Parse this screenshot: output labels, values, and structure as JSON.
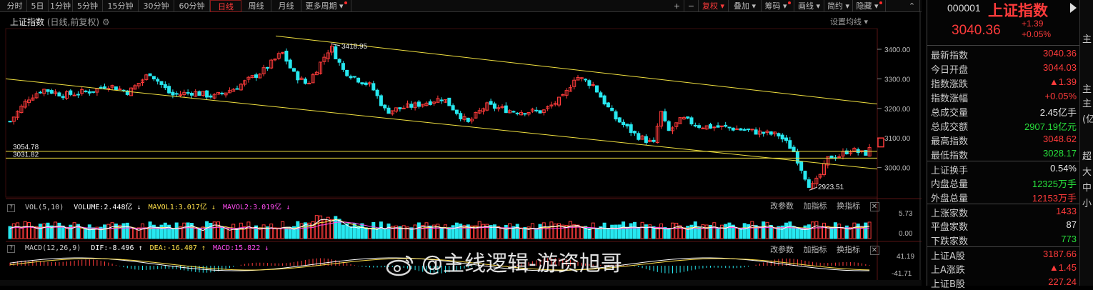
{
  "toolbar": {
    "periods": [
      "分时",
      "5日",
      "1分钟",
      "5分钟",
      "15分钟",
      "30分钟",
      "60分钟",
      "日线",
      "周线",
      "月线",
      "更多周期"
    ],
    "active_period": "日线",
    "right_tools": [
      "+",
      "−",
      "复权",
      "叠加",
      "筹码",
      "画线",
      "简约",
      "隐藏"
    ]
  },
  "chart": {
    "title": "上证指数",
    "subtitle": "(日线,前复权)",
    "settings_label": "设置均线",
    "y_ticks": [
      3400,
      3300,
      3200,
      3100,
      3000
    ],
    "y_tick_labels": [
      "3400.00",
      "3300.00",
      "3200.00",
      "3100.00",
      "3000.00"
    ],
    "ylim": [
      2900,
      3470
    ],
    "annotations": {
      "high_label": "3418.95",
      "low_label": "2923.51",
      "level1_label": "3054.78",
      "level2_label": "3031.82"
    }
  },
  "volume_panel": {
    "title": "VOL(5,10)",
    "volume": "VOLUME:2.448亿",
    "mavol1": "MAVOL1:3.017亿",
    "mavol2": "MAVOL2:3.019亿",
    "axis_top": "5.73",
    "axis_bottom": "0.00",
    "tools": [
      "改参数",
      "加指标",
      "换指标"
    ]
  },
  "macd_panel": {
    "title": "MACD(12,26,9)",
    "dif": "DIF:-8.496",
    "dea": "DEA:-16.407",
    "macd": "MACD:15.822",
    "axis_top": "41.19",
    "axis_bottom": "-41.71",
    "tools": [
      "改参数",
      "加指标",
      "换指标"
    ]
  },
  "quote": {
    "code": "000001",
    "name": "上证指数",
    "price": "3040.36",
    "change": "+1.39",
    "change_pct": "+0.05%",
    "rows": [
      {
        "label": "最新指数",
        "value": "3040.36",
        "color": "red"
      },
      {
        "label": "今日开盘",
        "value": "3044.03",
        "color": "red"
      },
      {
        "label": "指数涨跌",
        "value": "▲1.39",
        "color": "red"
      },
      {
        "label": "指数涨幅",
        "value": "+0.05%",
        "color": "red"
      },
      {
        "label": "总成交量",
        "value": "2.45亿手",
        "color": "white"
      },
      {
        "label": "总成交额",
        "value": "2907.19亿元",
        "color": "green"
      },
      {
        "label": "最高指数",
        "value": "3048.62",
        "color": "red"
      },
      {
        "label": "最低指数",
        "value": "3028.17",
        "color": "green"
      },
      {
        "label": "上证换手",
        "value": "0.54%",
        "color": "white",
        "sep": true
      },
      {
        "label": "内盘总量",
        "value": "12325万手",
        "color": "green"
      },
      {
        "label": "外盘总量",
        "value": "12153万手",
        "color": "red"
      },
      {
        "label": "上涨家数",
        "value": "1433",
        "color": "red",
        "sep": true
      },
      {
        "label": "平盘家数",
        "value": "87",
        "color": "white"
      },
      {
        "label": "下跌家数",
        "value": "773",
        "color": "green"
      },
      {
        "label": "上证A股",
        "value": "3187.66",
        "color": "red",
        "sep": true
      },
      {
        "label": "上A涨跌",
        "value": "▲1.45",
        "color": "red"
      },
      {
        "label": "上证B股",
        "value": "227.24",
        "color": "red"
      }
    ]
  },
  "edge_chars": [
    "主",
    "主",
    "主",
    "(亿",
    "超",
    "大",
    "中",
    "小"
  ],
  "watermark": "@主线逻辑-游资旭哥"
}
